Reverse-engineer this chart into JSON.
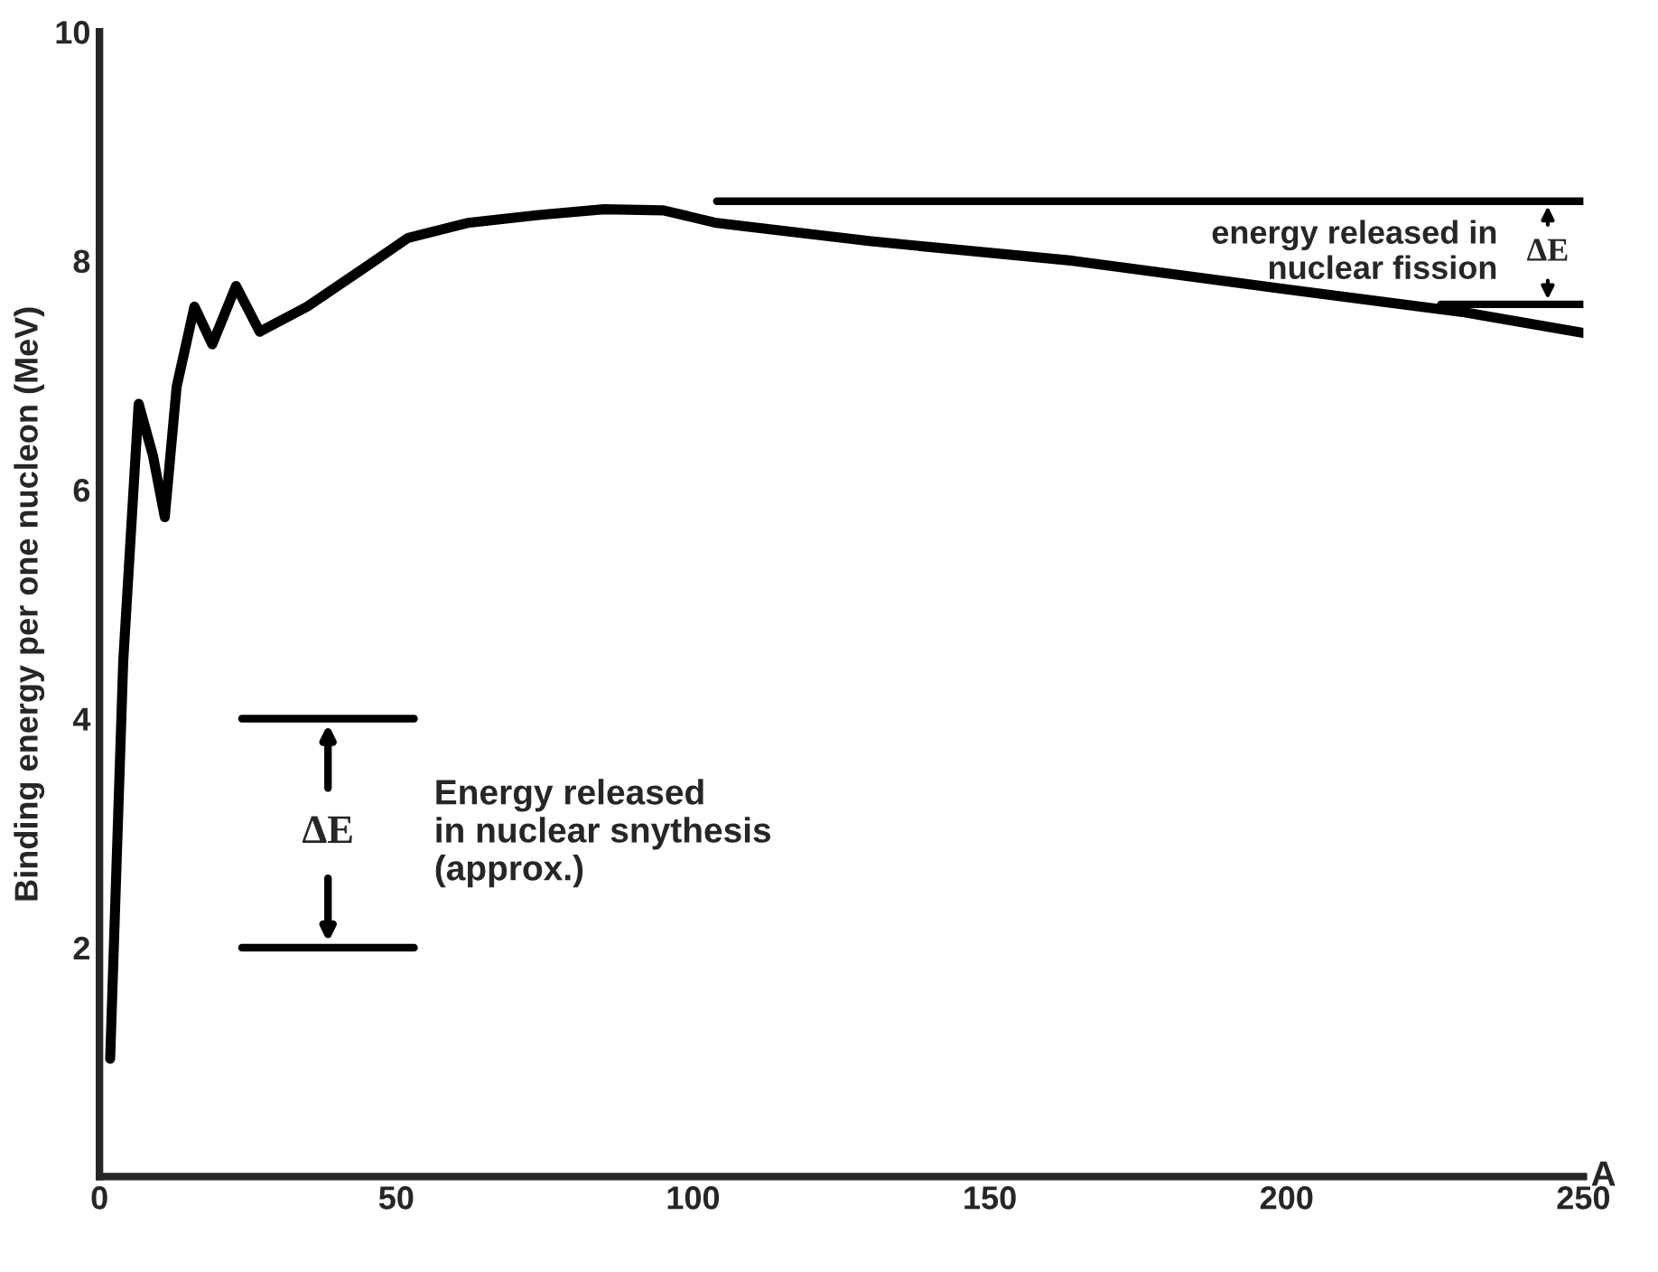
{
  "chart_data": {
    "type": "line",
    "xlabel": "A",
    "ylabel": "Binding energy per one nucleon (MeV)",
    "xlim": [
      0,
      250
    ],
    "ylim": [
      0,
      10
    ],
    "xticks": [
      0,
      50,
      100,
      150,
      200,
      250
    ],
    "yticks": [
      2,
      4,
      6,
      8,
      10
    ],
    "grid": false,
    "legend": false,
    "marker": "none",
    "line_style": "solid",
    "series": [
      {
        "color": "#000000",
        "x": [
          1.8,
          4,
          6.6,
          9,
          11,
          13,
          16,
          19,
          23,
          27,
          35,
          45,
          52,
          62,
          74,
          85,
          95,
          104,
          130,
          164,
          200,
          230,
          250
        ],
        "values": [
          1.03,
          4.5,
          6.75,
          6.3,
          5.76,
          6.9,
          7.6,
          7.27,
          7.78,
          7.38,
          7.6,
          7.95,
          8.2,
          8.33,
          8.4,
          8.45,
          8.44,
          8.33,
          8.17,
          8.0,
          7.75,
          7.55,
          7.37
        ]
      },
      {
        "color": "#000000",
        "x": [
          24,
          53
        ],
        "values": [
          4,
          4
        ]
      },
      {
        "color": "#000000",
        "x": [
          24,
          53
        ],
        "values": [
          2,
          2
        ]
      },
      {
        "color": "#000000",
        "x": [
          104,
          250
        ],
        "values": [
          8.52,
          8.52
        ]
      },
      {
        "color": "#000000",
        "x": [
          226,
          250
        ],
        "values": [
          7.62,
          7.62
        ]
      }
    ],
    "annotations": [
      "ΔE",
      "Energy released\nin nuclear snythesis\n(approx.)",
      "ΔE",
      "energy released in\nnuclear fission"
    ]
  }
}
